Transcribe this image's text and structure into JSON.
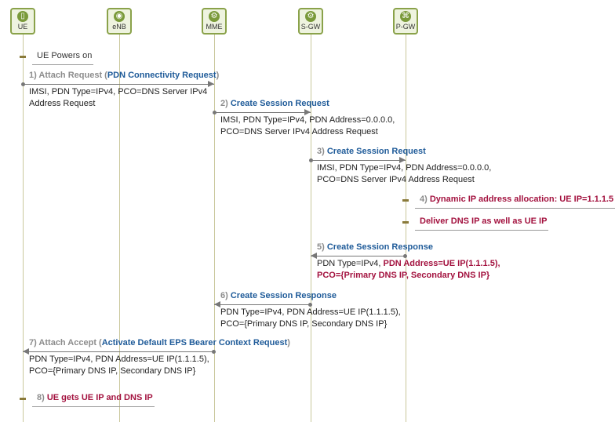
{
  "participants": [
    {
      "name": "UE",
      "icon": "mobile-phone-icon"
    },
    {
      "name": "eNB",
      "icon": "antenna-icon"
    },
    {
      "name": "MME",
      "icon": "gear-icon"
    },
    {
      "name": "S-GW",
      "icon": "gear-signal-icon"
    },
    {
      "name": "P-GW",
      "icon": "network-node-icon"
    }
  ],
  "colors": {
    "accent": "#8aa24a",
    "message_blue": "#1f5b99",
    "highlight_red": "#a3123f",
    "step_gray": "#8c8c8c"
  },
  "events": [
    {
      "type": "note",
      "at": "UE",
      "segments": [
        {
          "text": "UE Powers on",
          "style": "plain"
        }
      ]
    },
    {
      "type": "message",
      "from": "UE",
      "to": "MME",
      "segments": [
        {
          "text": "1) Attach Request (",
          "style": "gray"
        },
        {
          "text": "PDN Connectivity Request",
          "style": "blue"
        },
        {
          "text": ")",
          "style": "gray"
        }
      ],
      "params": [
        "IMSI, PDN Type=IPv4, PCO=DNS Server IPv4",
        "Address Request"
      ]
    },
    {
      "type": "message",
      "from": "MME",
      "to": "S-GW",
      "segments": [
        {
          "text": "2) ",
          "style": "gray"
        },
        {
          "text": "Create Session Request",
          "style": "blue"
        }
      ],
      "params": [
        "IMSI, PDN Type=IPv4, PDN Address=0.0.0.0,",
        "PCO=DNS Server IPv4 Address Request"
      ]
    },
    {
      "type": "message",
      "from": "S-GW",
      "to": "P-GW",
      "segments": [
        {
          "text": "3) ",
          "style": "gray"
        },
        {
          "text": "Create Session Request",
          "style": "blue"
        }
      ],
      "params": [
        "IMSI, PDN Type=IPv4, PDN Address=0.0.0.0,",
        "PCO=DNS Server IPv4 Address Request"
      ]
    },
    {
      "type": "note",
      "at": "P-GW",
      "segments": [
        {
          "text": "4) ",
          "style": "gray"
        },
        {
          "text": "Dynamic IP address allocation: UE IP=1.1.1.5",
          "style": "red"
        }
      ]
    },
    {
      "type": "note",
      "at": "P-GW",
      "segments": [
        {
          "text": "Deliver DNS IP as well as UE IP",
          "style": "red"
        }
      ]
    },
    {
      "type": "message",
      "from": "P-GW",
      "to": "S-GW",
      "segments": [
        {
          "text": "5) ",
          "style": "gray"
        },
        {
          "text": "Create Session Response",
          "style": "blue"
        }
      ],
      "params_rich": [
        [
          {
            "text": "PDN Type=IPv4, ",
            "style": "plain"
          },
          {
            "text": "PDN Address=UE IP(1.1.1.5),",
            "style": "red"
          }
        ],
        [
          {
            "text": "PCO={Primary DNS IP, Secondary DNS IP}",
            "style": "red"
          }
        ]
      ]
    },
    {
      "type": "message",
      "from": "S-GW",
      "to": "MME",
      "segments": [
        {
          "text": "6) ",
          "style": "gray"
        },
        {
          "text": "Create Session Response",
          "style": "blue"
        }
      ],
      "params": [
        "PDN Type=IPv4, PDN Address=UE IP(1.1.1.5),",
        "PCO={Primary DNS IP, Secondary DNS IP}"
      ]
    },
    {
      "type": "message",
      "from": "MME",
      "to": "UE",
      "segments": [
        {
          "text": "7) Attach Accept (",
          "style": "gray"
        },
        {
          "text": "Activate Default EPS Bearer Context Request",
          "style": "blue"
        },
        {
          "text": ")",
          "style": "gray"
        }
      ],
      "params": [
        "PDN Type=IPv4, PDN Address=UE IP(1.1.1.5),",
        "PCO={Primary DNS IP, Secondary DNS IP}"
      ]
    },
    {
      "type": "note",
      "at": "UE",
      "segments": [
        {
          "text": "8) ",
          "style": "gray"
        },
        {
          "text": "UE gets UE IP and DNS IP",
          "style": "red"
        }
      ]
    }
  ]
}
